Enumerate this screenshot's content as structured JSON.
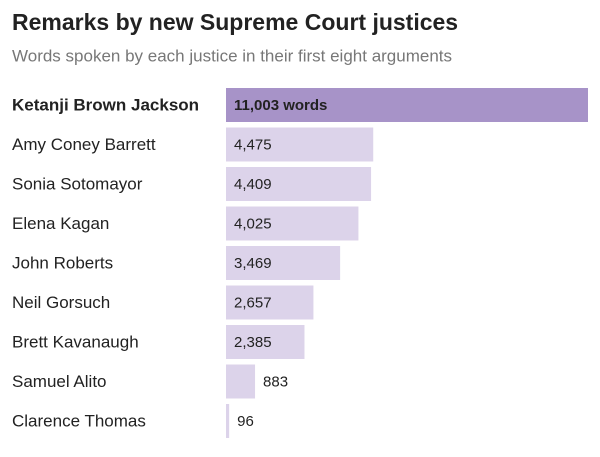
{
  "chart_data": {
    "type": "bar",
    "orientation": "horizontal",
    "title": "Remarks by new Supreme Court justices",
    "subtitle": "Words spoken by each justice in their first eight arguments",
    "categories": [
      "Ketanji Brown Jackson",
      "Amy Coney Barrett",
      "Sonia Sotomayor",
      "Elena Kagan",
      "John Roberts",
      "Neil Gorsuch",
      "Brett Kavanaugh",
      "Samuel Alito",
      "Clarence Thomas"
    ],
    "values": [
      11003,
      4475,
      4409,
      4025,
      3469,
      2657,
      2385,
      883,
      96
    ],
    "value_labels": [
      "11,003 words",
      "4,475",
      "4,409",
      "4,025",
      "3,469",
      "2,657",
      "2,385",
      "883",
      "96"
    ],
    "colors": [
      "#a793c8",
      "#dcd3ea",
      "#dcd3ea",
      "#dcd3ea",
      "#dcd3ea",
      "#dcd3ea",
      "#dcd3ea",
      "#dcd3ea",
      "#dcd3ea"
    ],
    "highlight": 0
  }
}
